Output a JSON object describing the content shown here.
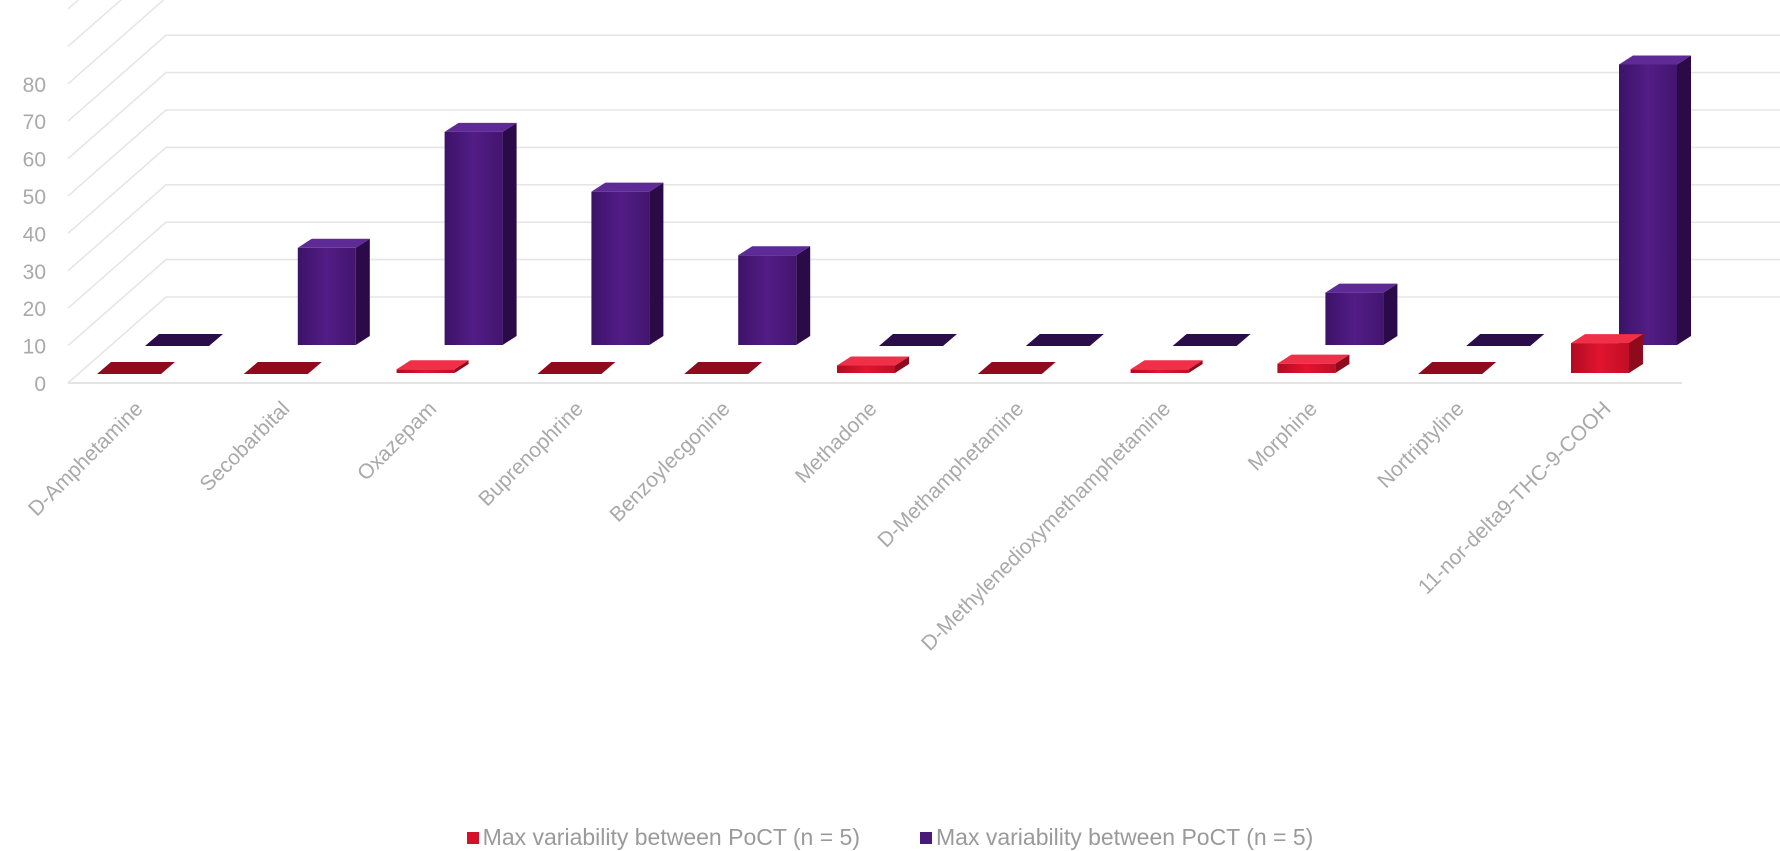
{
  "chart_data": {
    "type": "bar",
    "subtype": "3d-clustered-depth",
    "categories": [
      "D-Amphetamine",
      "Secobarbital",
      "Oxazepam",
      "Buprenophrine",
      "Benzoylecgonine",
      "Methadone",
      "D-Methamphetamine",
      "D-Methylenedioxymethamphetamine",
      "Morphine",
      "Nortriptyline",
      "11-nor-delta9-THC-9-COOH"
    ],
    "series": [
      {
        "name": "Max variability between PoCT  (n = 5)",
        "color": "#d4102a",
        "values": [
          0,
          0,
          1,
          0,
          0,
          2,
          0,
          1,
          2.5,
          0,
          8
        ]
      },
      {
        "name": "Max variability between PoCT  (n = 5)",
        "color": "#4a1a7a",
        "values": [
          0,
          26,
          57,
          41,
          24,
          0,
          0,
          0,
          14,
          0,
          75
        ]
      }
    ],
    "yticks": [
      0,
      10,
      20,
      30,
      40,
      50,
      60,
      70,
      80
    ],
    "ylim": [
      0,
      80
    ],
    "grid": true,
    "legend_position": "bottom"
  }
}
